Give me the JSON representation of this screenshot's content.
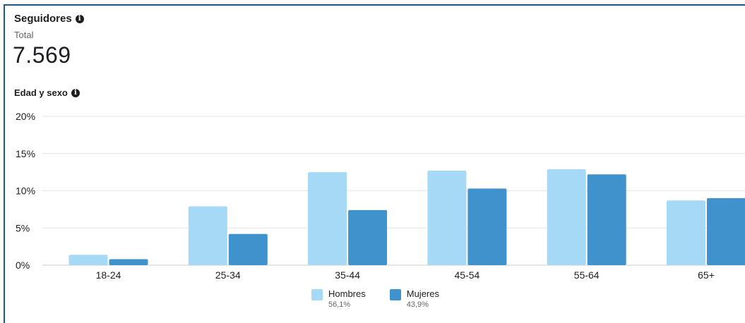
{
  "header": {
    "title": "Seguidores",
    "total_label": "Total",
    "total_value": "7.569"
  },
  "section": {
    "title": "Edad y sexo"
  },
  "colors": {
    "hombres": "#a6d9f5",
    "mujeres": "#3f92cc",
    "grid": "#e4e6eb",
    "axis_text": "#1c1e21"
  },
  "chart_data": {
    "type": "bar",
    "title": "Edad y sexo",
    "categories": [
      "18-24",
      "25-34",
      "35-44",
      "45-54",
      "55-64",
      "65+"
    ],
    "series": [
      {
        "name": "Hombres",
        "share": "56,1%",
        "values": [
          1.4,
          7.9,
          12.5,
          12.7,
          12.9,
          8.7
        ]
      },
      {
        "name": "Mujeres",
        "share": "43,9%",
        "values": [
          0.8,
          4.2,
          7.4,
          10.3,
          12.2,
          9.0
        ]
      }
    ],
    "yticks": [
      "0%",
      "5%",
      "10%",
      "15%",
      "20%"
    ],
    "ylim": [
      0,
      20
    ],
    "grid": true,
    "legend_position": "bottom-center"
  }
}
